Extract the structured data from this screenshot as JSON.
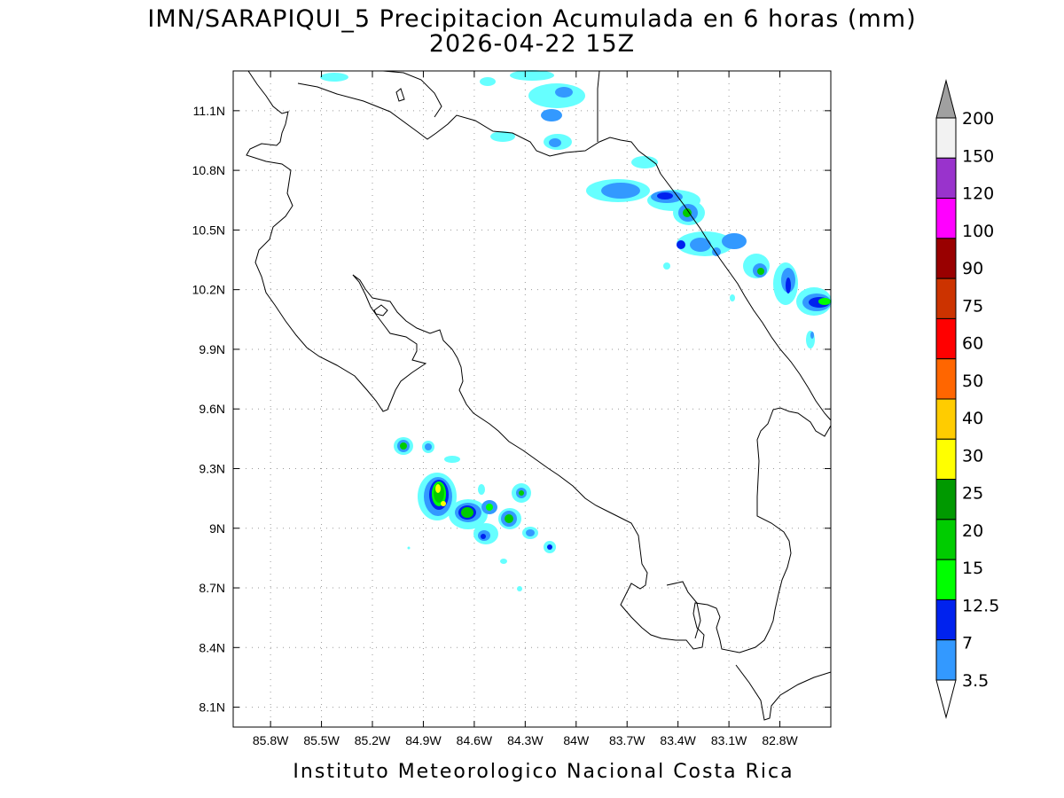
{
  "title": {
    "line1": "IMN/SARAPIQUI_5 Precipitacion Acumulada en 6 horas (mm)",
    "line2": "2026-04-22 15Z"
  },
  "footer": "Instituto Meteorologico Nacional Costa Rica",
  "map": {
    "lon_range": [
      -86.02,
      -82.5
    ],
    "lat_range": [
      8.0,
      11.3
    ],
    "lon_ticks": [
      "85.8W",
      "85.5W",
      "85.2W",
      "84.9W",
      "84.6W",
      "84.3W",
      "84W",
      "83.7W",
      "83.4W",
      "83.1W",
      "82.8W"
    ],
    "lon_values": [
      -85.8,
      -85.5,
      -85.2,
      -84.9,
      -84.6,
      -84.3,
      -84.0,
      -83.7,
      -83.4,
      -83.1,
      -82.8
    ],
    "lat_ticks": [
      "8.1N",
      "8.4N",
      "8.7N",
      "9N",
      "9.3N",
      "9.6N",
      "9.9N",
      "10.2N",
      "10.5N",
      "10.8N",
      "11.1N"
    ],
    "lat_values": [
      8.1,
      8.4,
      8.7,
      9.0,
      9.3,
      9.6,
      9.9,
      10.2,
      10.5,
      10.8,
      11.1
    ],
    "grid": true
  },
  "colorbar": {
    "labels": [
      "3.5",
      "7",
      "12.5",
      "15",
      "20",
      "25",
      "30",
      "40",
      "50",
      "60",
      "75",
      "90",
      "100",
      "120",
      "150",
      "200"
    ],
    "colors": [
      "#66ffff",
      "#3399ff",
      "#0022ee",
      "#00ff00",
      "#00cc00",
      "#009900",
      "#ffff00",
      "#ffcc00",
      "#ff6600",
      "#ff0000",
      "#cc3300",
      "#990000",
      "#ff00ff",
      "#9933cc",
      "#f2f2f2",
      "#a0a0a0"
    ]
  }
}
